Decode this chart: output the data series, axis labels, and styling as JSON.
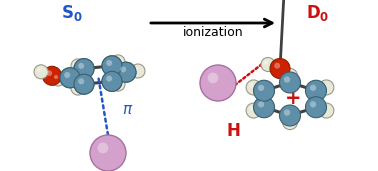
{
  "bg_color": "#ffffff",
  "fig_width": 3.78,
  "fig_height": 1.71,
  "dpi": 100,
  "carbon_color": "#5f8fa8",
  "carbon_edge": "#3a6070",
  "hydrogen_color": "#e8e8d8",
  "hydrogen_edge": "#999988",
  "oxygen_color": "#cc2200",
  "oxygen_edge": "#882200",
  "argon_color": "#d4a0cc",
  "argon_edge": "#a870a0",
  "bond_color": "#404040",
  "dashed_blue": "#2255cc",
  "dashed_red": "#cc1111",
  "label_blue": "#2255cc",
  "label_red": "#cc1111"
}
